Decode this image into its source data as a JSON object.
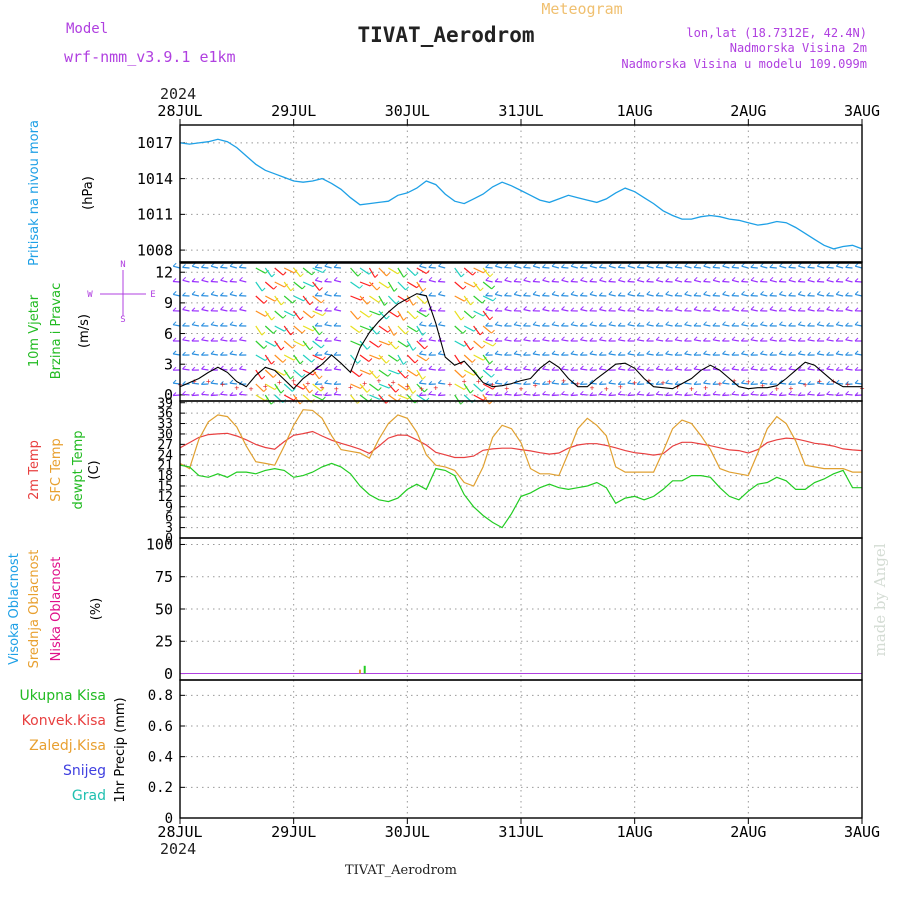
{
  "header": {
    "model_label": "Model",
    "model_name": "wrf-nmm_v3.9.1  e1km",
    "product": "Meteogram",
    "station": "TIVAT_Aerodrom",
    "lonlat": "lon,lat (18.7312E, 42.4N)",
    "elevation": "Nadmorska Visina 2m",
    "model_elevation": "Nadmorska Visina u modelu 109.099m",
    "year_top": "2024",
    "year_bottom": "2024",
    "footer_station": "TIVAT_Aerodrom",
    "credit": "made by Angel"
  },
  "colors": {
    "pressure": "#1ea0e6",
    "temp2m": "#e84040",
    "sfc": "#e0a030",
    "dewpt": "#22cc22",
    "purple": "#b040e0",
    "green_label": "#22bb22",
    "cyan_label": "#1ea0e6",
    "orange_label": "#e8a030",
    "magenta_label": "#e0108a",
    "credit": "#d4dcd4"
  },
  "x_axis": {
    "day_labels": [
      "28JUL",
      "29JUL",
      "30JUL",
      "31JUL",
      "1AUG",
      "2AUG",
      "3AUG"
    ],
    "hours": 144
  },
  "chart_data": [
    {
      "type": "line",
      "panel": "pressure",
      "ylabel_side": "Pritisak na nivou mora",
      "ylabel": "(hPa)",
      "ylim": [
        1007,
        1018.5
      ],
      "yticks": [
        1008,
        1011,
        1014,
        1017
      ],
      "grid": true,
      "series": [
        {
          "x": [
            0,
            2,
            4,
            6,
            8,
            10,
            12,
            14,
            16,
            18,
            20,
            22,
            24,
            26,
            28,
            30,
            32,
            34,
            36,
            38,
            40,
            42,
            44,
            46,
            48,
            50,
            52,
            54,
            56,
            58,
            60,
            62,
            64,
            66,
            68,
            70,
            72,
            74,
            76,
            78,
            80,
            82,
            84,
            86,
            88,
            90,
            92,
            94,
            96,
            98,
            100,
            102,
            104,
            106,
            108,
            110,
            112,
            114,
            116,
            118,
            120,
            122,
            124,
            126,
            128,
            130,
            132,
            134,
            136,
            138,
            140,
            142,
            144
          ],
          "y": [
            1017.0,
            1016.9,
            1017.0,
            1017.1,
            1017.3,
            1017.1,
            1016.6,
            1015.9,
            1015.2,
            1014.7,
            1014.4,
            1014.1,
            1013.8,
            1013.7,
            1013.8,
            1014.0,
            1013.6,
            1013.1,
            1012.4,
            1011.8,
            1011.9,
            1012.0,
            1012.1,
            1012.6,
            1012.8,
            1013.2,
            1013.8,
            1013.5,
            1012.7,
            1012.1,
            1011.9,
            1012.3,
            1012.7,
            1013.3,
            1013.7,
            1013.4,
            1013.0,
            1012.6,
            1012.2,
            1012.0,
            1012.3,
            1012.6,
            1012.4,
            1012.2,
            1012.0,
            1012.3,
            1012.8,
            1013.2,
            1012.9,
            1012.4,
            1011.9,
            1011.3,
            1010.9,
            1010.6,
            1010.6,
            1010.8,
            1010.9,
            1010.8,
            1010.6,
            1010.5,
            1010.3,
            1010.1,
            1010.2,
            1010.4,
            1010.3,
            1009.9,
            1009.4,
            1008.9,
            1008.4,
            1008.1,
            1008.3,
            1008.4,
            1008.1
          ]
        }
      ]
    },
    {
      "type": "line",
      "panel": "wind",
      "ylabel_side_1": "10m Vjetar",
      "ylabel_side_2": "Brzina i Pravac",
      "ylabel": "(m/s)",
      "compass": {
        "n": "N",
        "s": "S",
        "e": "E",
        "w": "W"
      },
      "ylim": [
        -0.6,
        13
      ],
      "yticks": [
        0,
        3,
        6,
        9,
        12
      ],
      "grid": true,
      "series": [
        {
          "name": "speed",
          "x": [
            0,
            2,
            4,
            6,
            8,
            10,
            12,
            14,
            16,
            18,
            20,
            22,
            24,
            26,
            28,
            30,
            32,
            34,
            36,
            38,
            40,
            42,
            44,
            46,
            48,
            50,
            52,
            54,
            56,
            58,
            60,
            62,
            64,
            66,
            68,
            70,
            72,
            74,
            76,
            78,
            80,
            82,
            84,
            86,
            88,
            90,
            92,
            94,
            96,
            98,
            100,
            102,
            104,
            106,
            108,
            110,
            112,
            114,
            116,
            118,
            120,
            122,
            124,
            126,
            128,
            130,
            132,
            134,
            136,
            138,
            140,
            142,
            144
          ],
          "y": [
            0.8,
            1.2,
            1.6,
            2.2,
            2.7,
            2.2,
            1.3,
            0.8,
            1.9,
            2.7,
            2.4,
            1.5,
            0.6,
            1.6,
            2.3,
            3.0,
            3.9,
            3.1,
            2.2,
            4.6,
            6.1,
            7.2,
            8.1,
            8.9,
            9.4,
            9.9,
            9.7,
            7.0,
            3.7,
            2.9,
            3.3,
            2.3,
            1.2,
            0.8,
            0.9,
            1.1,
            1.4,
            1.6,
            2.6,
            3.3,
            2.7,
            1.6,
            0.8,
            0.8,
            1.6,
            2.3,
            3.0,
            3.1,
            2.6,
            1.6,
            0.8,
            0.7,
            0.6,
            1.1,
            1.6,
            2.4,
            2.9,
            2.4,
            1.6,
            0.8,
            0.6,
            0.7,
            0.7,
            0.9,
            1.6,
            2.4,
            3.2,
            2.9,
            2.1,
            1.3,
            0.8,
            0.8,
            0.8
          ]
        }
      ]
    },
    {
      "type": "line",
      "panel": "temperature",
      "ylabel_side_1": "2m Temp",
      "ylabel_side_2": "SFC Temp",
      "ylabel_side_3": "dewpt Temp",
      "ylabel": "(C)",
      "ylim": [
        0,
        39.5
      ],
      "yticks": [
        0,
        3,
        6,
        9,
        12,
        15,
        18,
        21,
        24,
        27,
        30,
        33,
        36,
        39
      ],
      "grid": true,
      "x": [
        0,
        2,
        4,
        6,
        8,
        10,
        12,
        14,
        16,
        18,
        20,
        22,
        24,
        26,
        28,
        30,
        32,
        34,
        36,
        38,
        40,
        42,
        44,
        46,
        48,
        50,
        52,
        54,
        56,
        58,
        60,
        62,
        64,
        66,
        68,
        70,
        72,
        74,
        76,
        78,
        80,
        82,
        84,
        86,
        88,
        90,
        92,
        94,
        96,
        98,
        100,
        102,
        104,
        106,
        108,
        110,
        112,
        114,
        116,
        118,
        120,
        122,
        124,
        126,
        128,
        130,
        132,
        134,
        136,
        138,
        140,
        142,
        144
      ],
      "series": [
        {
          "name": "2m Temp",
          "y": [
            26.0,
            27.5,
            29.0,
            29.8,
            30.0,
            30.2,
            29.4,
            28.3,
            27.0,
            26.1,
            25.6,
            27.8,
            29.6,
            30.1,
            30.7,
            29.4,
            28.2,
            27.3,
            26.5,
            25.6,
            24.4,
            26.5,
            28.8,
            29.7,
            29.6,
            28.3,
            26.8,
            24.7,
            24.0,
            23.2,
            23.2,
            23.6,
            25.3,
            25.7,
            25.9,
            25.9,
            25.5,
            25.1,
            24.6,
            24.2,
            24.5,
            25.9,
            26.8,
            27.2,
            27.2,
            26.7,
            26.0,
            25.2,
            24.6,
            24.3,
            23.9,
            24.3,
            26.5,
            27.6,
            27.6,
            27.1,
            26.6,
            26.0,
            25.4,
            25.2,
            24.5,
            25.5,
            27.5,
            28.3,
            28.8,
            28.6,
            28.0,
            27.3,
            27.0,
            26.5,
            25.7,
            25.4,
            25.2
          ]
        },
        {
          "name": "SFC Temp",
          "y": [
            21.5,
            20.0,
            28.5,
            33.5,
            35.5,
            35.0,
            32.0,
            26.5,
            22.0,
            21.5,
            21.0,
            26.5,
            32.5,
            37.0,
            36.8,
            34.5,
            29.5,
            25.5,
            25.0,
            24.5,
            23.0,
            28.5,
            33.0,
            35.5,
            34.5,
            30.5,
            24.0,
            21.0,
            20.5,
            19.5,
            16.0,
            15.0,
            20.5,
            29.0,
            32.5,
            31.5,
            27.5,
            20.0,
            18.5,
            18.5,
            18.0,
            24.5,
            31.5,
            34.5,
            32.5,
            29.5,
            20.5,
            19.0,
            19.0,
            19.0,
            19.0,
            25.0,
            31.5,
            34.0,
            33.0,
            29.5,
            25.5,
            20.0,
            19.0,
            18.5,
            18.0,
            24.5,
            31.5,
            35.0,
            33.0,
            28.0,
            21.0,
            20.5,
            20.0,
            20.0,
            20.0,
            19.0,
            19.0
          ]
        },
        {
          "name": "dewpt Temp",
          "y": [
            21.0,
            20.5,
            18.0,
            17.5,
            18.5,
            17.5,
            19.0,
            19.0,
            18.5,
            19.5,
            20.0,
            19.5,
            17.5,
            18.0,
            19.0,
            20.5,
            21.5,
            20.5,
            18.5,
            15.0,
            12.5,
            11.0,
            10.5,
            11.5,
            14.0,
            15.5,
            14.0,
            20.0,
            19.5,
            18.0,
            12.5,
            9.0,
            6.5,
            4.5,
            3.0,
            7.0,
            12.0,
            13.0,
            14.5,
            15.5,
            14.5,
            14.0,
            14.5,
            15.0,
            16.0,
            14.5,
            10.0,
            11.5,
            12.0,
            11.0,
            12.0,
            14.0,
            16.5,
            16.5,
            18.0,
            18.0,
            17.5,
            14.5,
            12.0,
            11.0,
            13.5,
            15.5,
            16.0,
            17.5,
            16.5,
            14.0,
            14.0,
            16.0,
            17.0,
            18.5,
            19.5,
            14.5,
            14.5
          ]
        }
      ]
    },
    {
      "type": "bar",
      "panel": "cloud",
      "ylabel_side_1": "Visoka Oblacnost",
      "ylabel_side_2": "Srednja Oblacnost",
      "ylabel_side_3": "Niska Oblacnost",
      "ylabel": "(%)",
      "ylim": [
        -5,
        105
      ],
      "yticks": [
        0,
        25,
        50,
        75,
        100
      ],
      "grid": true,
      "series": [
        {
          "name": "Srednja Oblacnost",
          "x": [
            38,
            39
          ],
          "values": [
            3,
            6
          ]
        }
      ]
    },
    {
      "type": "bar",
      "panel": "precip",
      "ylabel_side_1": "Ukupna Kisa",
      "ylabel_side_2": "Konvek.Kisa",
      "ylabel_side_3": "Zaledj.Kisa",
      "ylabel_side_4": "Snijeg",
      "ylabel_side_5": "Grad",
      "ylabel": "1hr Precip (mm)",
      "ylim": [
        0,
        0.9
      ],
      "yticks": [
        0,
        0.2,
        0.4,
        0.6,
        0.8
      ],
      "grid": true,
      "series": []
    }
  ]
}
